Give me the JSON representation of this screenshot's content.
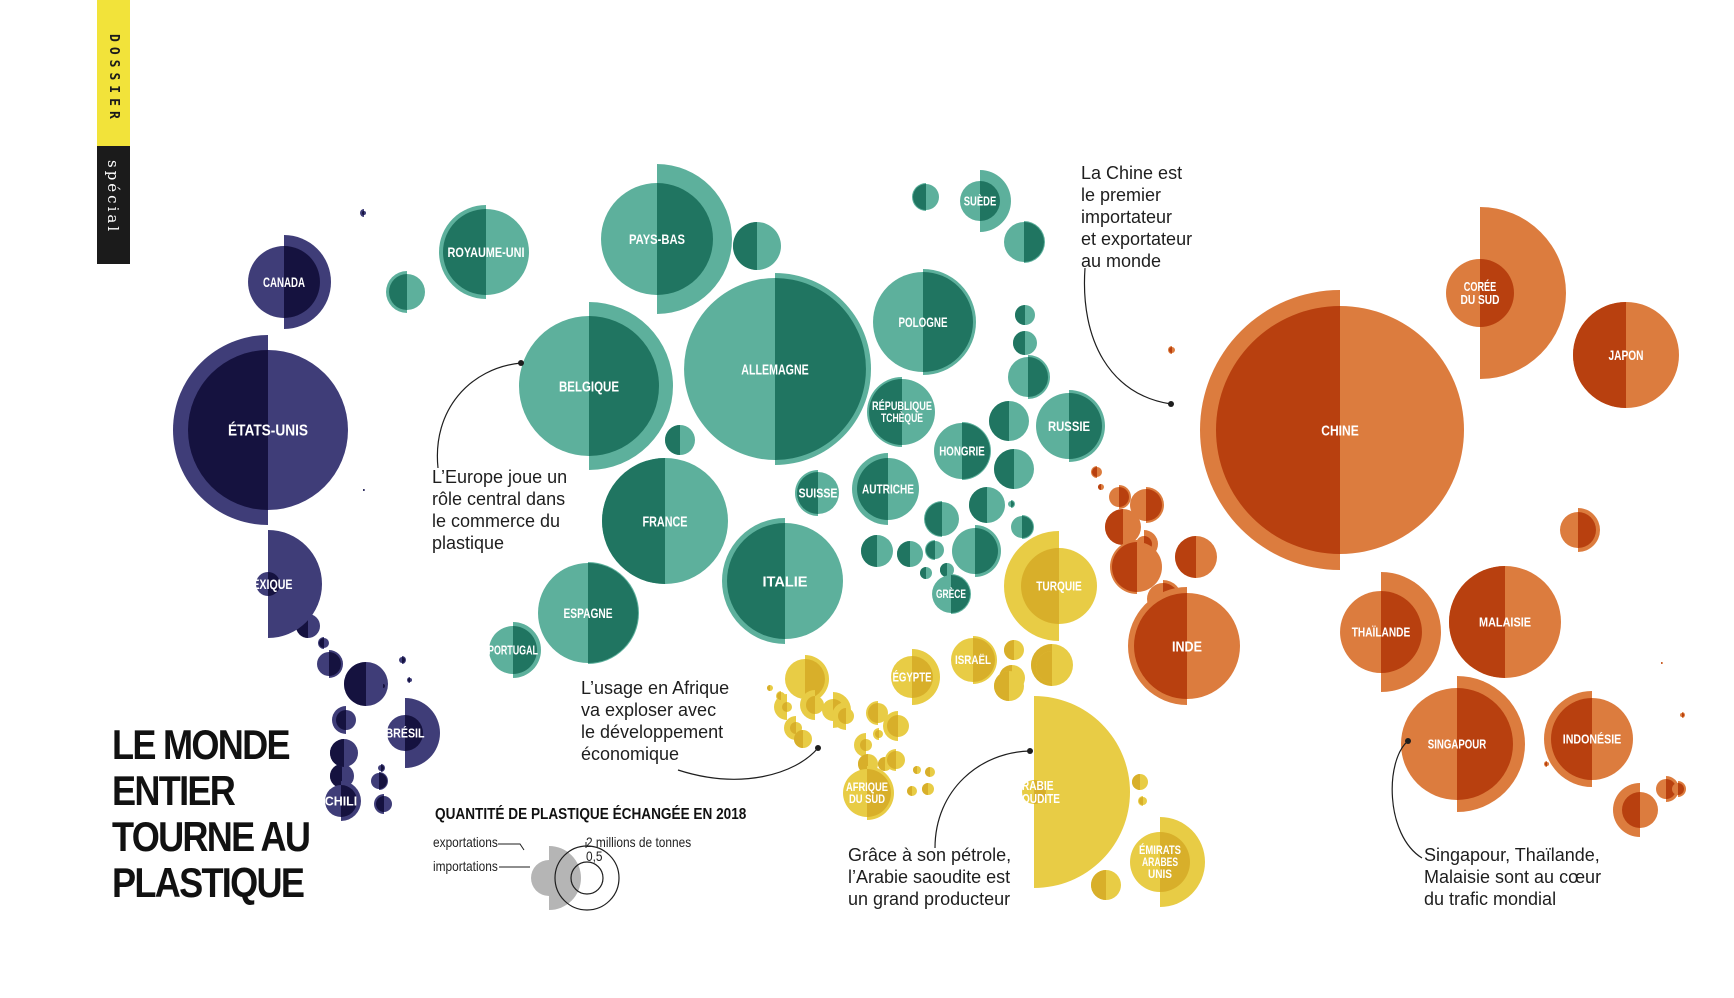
{
  "section_tab": {
    "top": "DOSSIER",
    "bottom": "spécial"
  },
  "title": "LE MONDE\nENTIER\nTOURNE AU\nPLASTIQUE",
  "annotations": {
    "europe": "L’Europe joue un\nrôle central dans\nle commerce du\nplastique",
    "chine": "La Chine est\nle premier\nimportateur\net exportateur\nau monde",
    "afrique": "L’usage en Afrique\nva exploser avec\nle développement\néconomique",
    "arabie": "Grâce à son pétrole,\nl’Arabie saoudite est\nun grand producteur",
    "asie": "Singapour, Thaïlande,\nMalaisie sont au cœur\ndu trafic mondial"
  },
  "legend": {
    "title": "QUANTITÉ DE PLASTIQUE ÉCHANGÉE EN 2018",
    "exportations": "exportations",
    "importations": "importations",
    "scale_large": "2 millions de tonnes",
    "scale_small": "0,5"
  },
  "colors": {
    "amerique_light": "#3f3d78",
    "amerique_dark": "#15123f",
    "europe_light": "#5db09c",
    "europe_dark": "#207561",
    "moyen_orient_light": "#e8cc45",
    "moyen_orient_dark": "#d8af2a",
    "asie_light": "#dc7c3e",
    "asie_dark": "#b8400f",
    "legend_gray": "#b5b5b5"
  },
  "chart_data": {
    "type": "bubble",
    "title": "QUANTITÉ DE PLASTIQUE ÉCHANGÉE EN 2018",
    "encoding": "Each country is split in two half-discs: left half = exportations, right half = importations (area proportional to tonnage).",
    "unit": "millions de tonnes",
    "countries": [
      {
        "name": "CHINE",
        "region": "asie",
        "export_mt": 6.5,
        "import_mt": 6.6
      },
      {
        "name": "ALLEMAGNE",
        "region": "europe",
        "export_mt": 2.4,
        "import_mt": 2.3
      },
      {
        "name": "ÉTATS-UNIS",
        "region": "amerique",
        "export_mt": 2.3,
        "import_mt": 1.8
      },
      {
        "name": "BELGIQUE",
        "region": "europe",
        "export_mt": 1.6,
        "import_mt": 1.7
      },
      {
        "name": "FRANCE",
        "region": "europe",
        "export_mt": 1.2,
        "import_mt": 1.1
      },
      {
        "name": "ITALIE",
        "region": "europe",
        "export_mt": 1.2,
        "import_mt": 1.0
      },
      {
        "name": "PAYS-BAS",
        "region": "europe",
        "export_mt": 0.9,
        "import_mt": 1.2
      },
      {
        "name": "ARABIE SAOUDITE",
        "region": "moyen_orient",
        "export_mt": 0.02,
        "import_mt": 2.1
      },
      {
        "name": "CORÉE DU SUD",
        "region": "asie",
        "export_mt": 0.4,
        "import_mt": 1.7
      },
      {
        "name": "INDE",
        "region": "asie",
        "export_mt": 1.0,
        "import_mt": 0.8
      },
      {
        "name": "SINGAPOUR",
        "region": "asie",
        "export_mt": 1.0,
        "import_mt": 0.9
      },
      {
        "name": "MALAISIE",
        "region": "asie",
        "export_mt": 0.6,
        "import_mt": 0.8
      },
      {
        "name": "THAÏLANDE",
        "region": "asie",
        "export_mt": 0.5,
        "import_mt": 0.7
      },
      {
        "name": "JAPON",
        "region": "asie",
        "export_mt": 0.7,
        "import_mt": 0.7
      },
      {
        "name": "POLOGNE",
        "region": "europe",
        "export_mt": 0.7,
        "import_mt": 0.8
      },
      {
        "name": "ESPAGNE",
        "region": "europe",
        "export_mt": 0.7,
        "import_mt": 0.6
      },
      {
        "name": "ROYAUME-UNI",
        "region": "europe",
        "export_mt": 0.5,
        "import_mt": 0.5
      },
      {
        "name": "MEXIQUE",
        "region": "amerique",
        "export_mt": 0.1,
        "import_mt": 0.45
      },
      {
        "name": "CANADA",
        "region": "amerique",
        "export_mt": 0.3,
        "import_mt": 0.45
      },
      {
        "name": "TURQUIE",
        "region": "moyen_orient",
        "export_mt": 0.6,
        "import_mt": 0.25
      },
      {
        "name": "INDONÉSIE",
        "region": "asie",
        "export_mt": 0.3,
        "import_mt": 0.35
      },
      {
        "name": "RUSSIE",
        "region": "europe",
        "export_mt": 0.3,
        "import_mt": 0.4
      },
      {
        "name": "AUTRICHE",
        "region": "europe",
        "export_mt": 0.35,
        "import_mt": 0.3
      },
      {
        "name": "RÉPUBLIQUE TCHÈQUE",
        "region": "europe",
        "export_mt": 0.25,
        "import_mt": 0.3
      },
      {
        "name": "ÉMIRATS ARABES UNIS",
        "region": "moyen_orient",
        "export_mt": 0.25,
        "import_mt": 0.35
      },
      {
        "name": "ÉGYPTE",
        "region": "moyen_orient",
        "export_mt": 0.15,
        "import_mt": 0.25
      },
      {
        "name": "BRÉSIL",
        "region": "amerique",
        "export_mt": 0.1,
        "import_mt": 0.3
      },
      {
        "name": "HONGRIE",
        "region": "europe",
        "export_mt": 0.2,
        "import_mt": 0.2
      },
      {
        "name": "SUÈDE",
        "region": "europe",
        "export_mt": 0.25,
        "import_mt": 0.2
      },
      {
        "name": "SUISSE",
        "region": "europe",
        "export_mt": 0.15,
        "import_mt": 0.15
      },
      {
        "name": "PORTUGAL",
        "region": "europe",
        "export_mt": 0.12,
        "import_mt": 0.15
      },
      {
        "name": "AFRIQUE DU SUD",
        "region": "moyen_orient",
        "export_mt": 0.08,
        "import_mt": 0.15
      },
      {
        "name": "ISRAËL",
        "region": "moyen_orient",
        "export_mt": 0.1,
        "import_mt": 0.12
      },
      {
        "name": "GRÈCE",
        "region": "europe",
        "export_mt": 0.08,
        "import_mt": 0.1
      },
      {
        "name": "CHILI",
        "region": "amerique",
        "export_mt": 0.05,
        "import_mt": 0.1
      }
    ]
  }
}
